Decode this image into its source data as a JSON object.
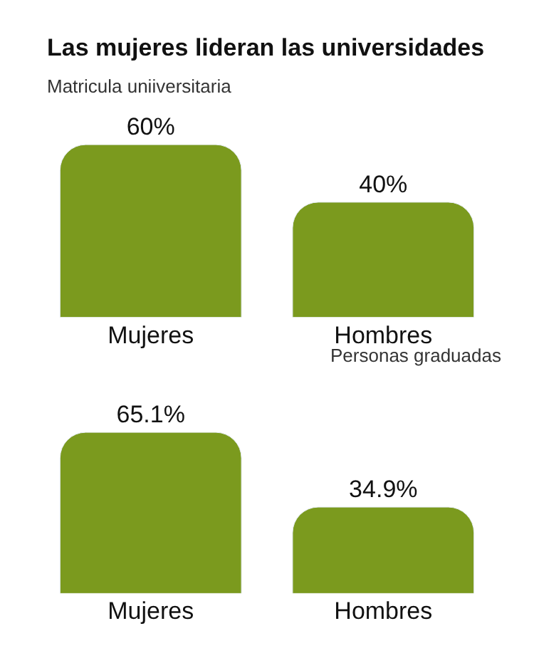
{
  "chart_data": [
    {
      "type": "bar",
      "title": "Las mujeres lideran las universidades",
      "subtitle": "Matricula uniiversitaria",
      "categories": [
        "Mujeres",
        "Hombres"
      ],
      "values": [
        60,
        40
      ],
      "value_labels": [
        "60%",
        "40%"
      ],
      "color": "#7b9a1e"
    },
    {
      "type": "bar",
      "title": "Personas graduadas",
      "categories": [
        "Mujeres",
        "Hombres"
      ],
      "values": [
        65.1,
        34.9
      ],
      "value_labels": [
        "65.1%",
        "34.9%"
      ],
      "color": "#7b9a1e"
    }
  ]
}
